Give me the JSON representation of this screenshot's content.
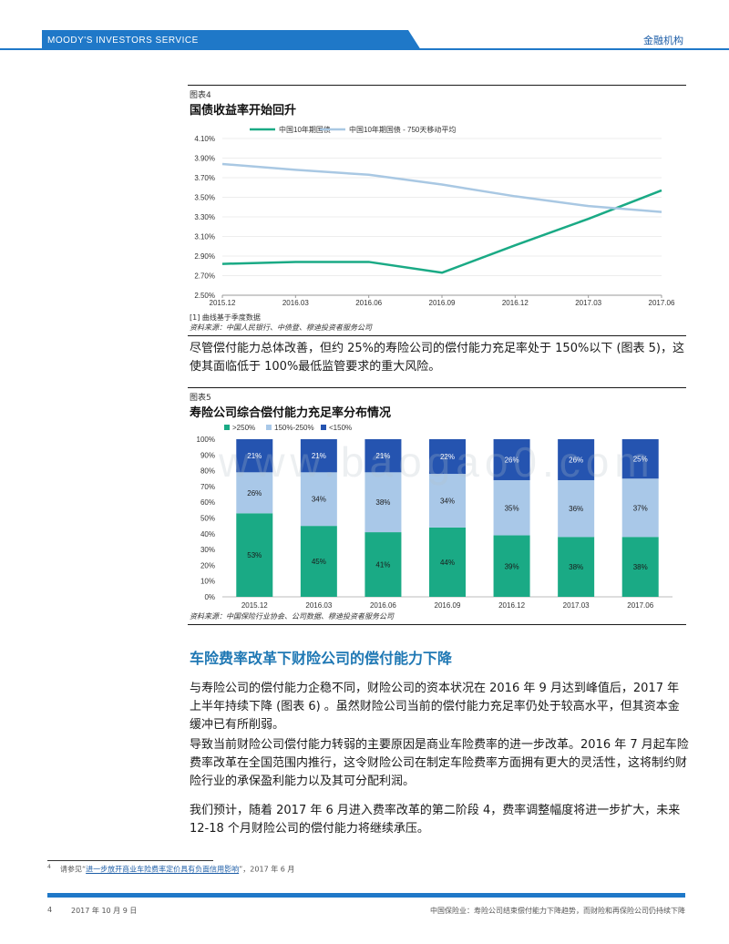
{
  "header": {
    "brand": "MOODY'S INVESTORS SERVICE",
    "section": "金融机构",
    "brand_color": "#1f78c8"
  },
  "figure4": {
    "label": "图表4",
    "title": "国债收益率开始回升",
    "note": "[1]    曲线基于季度数据",
    "source": "资料来源：中国人民银行、中债登、穆迪投资者服务公司"
  },
  "paragraph1": "尽管偿付能力总体改善，但约 25%的寿险公司的偿付能力充足率处于 150%以下 (图表 5)，这使其面临低于 100%最低监管要求的重大风险。",
  "figure5": {
    "label": "图表5",
    "title": "寿险公司综合偿付能力充足率分布情况",
    "source": "资料来源：中国保险行业协会、公司数据、穆迪投资者服务公司"
  },
  "section_heading": "车险费率改革下财险公司的偿付能力下降",
  "paragraph2": "与寿险公司的偿付能力企稳不同，财险公司的资本状况在 2016 年 9 月达到峰值后，2017 年上半年持续下降 (图表 6) 。虽然财险公司当前的偿付能力充足率仍处于较高水平，但其资本金缓冲已有所削弱。",
  "paragraph3": "导致当前财险公司偿付能力转弱的主要原因是商业车险费率的进一步改革。2016 年 7 月起车险费率改革在全国范围内推行，这令财险公司在制定车险费率方面拥有更大的灵活性，这将制约财险行业的承保盈利能力以及其可分配利润。",
  "paragraph4": "我们预计，随着 2017 年 6 月进入费率改革的第二阶段 4，费率调整幅度将进一步扩大，未来 12-18 个月财险公司的偿付能力将继续承压。",
  "footnote": {
    "number": "4",
    "prefix": "请参见“",
    "link": "进一步放开商业车险费率定价具有负面信用影响",
    "suffix": "”，2017 年 6 月"
  },
  "footer": {
    "page": "4",
    "date": "2017 年 10 月 9 日",
    "title": "中国保险业：寿险公司结束偿付能力下降趋势，而财险和再保险公司仍持续下降"
  },
  "watermark": "www.baogao0.com",
  "chart_data": [
    {
      "type": "line",
      "x": [
        "2015.12",
        "2016.03",
        "2016.06",
        "2016.09",
        "2016.12",
        "2017.03",
        "2017.06"
      ],
      "series": [
        {
          "name": "中国10年期国债",
          "color": "#1aaa85",
          "values": [
            2.82,
            2.84,
            2.84,
            2.73,
            3.01,
            3.28,
            3.57
          ]
        },
        {
          "name": "中国10年期国债 - 750天移动平均",
          "color": "#a9c8e3",
          "values": [
            3.84,
            3.78,
            3.73,
            3.63,
            3.51,
            3.41,
            3.35
          ]
        }
      ],
      "yticks": [
        "4.10%",
        "3.90%",
        "3.70%",
        "3.50%",
        "3.30%",
        "3.10%",
        "2.90%",
        "2.70%",
        "2.50%"
      ],
      "ylim": [
        2.5,
        4.1
      ],
      "legend": "top"
    },
    {
      "type": "bar",
      "stacked": true,
      "categories": [
        "2015.12",
        "2016.03",
        "2016.06",
        "2016.09",
        "2016.12",
        "2017.03",
        "2017.06"
      ],
      "series": [
        {
          "name": ">250%",
          "color": "#1aaa85",
          "values": [
            53,
            45,
            41,
            44,
            39,
            38,
            38
          ],
          "labels": [
            "53%",
            "45%",
            "41%",
            "44%",
            "39%",
            "38%",
            "38%"
          ]
        },
        {
          "name": "150%-250%",
          "color": "#a9c8e8",
          "values": [
            26,
            34,
            38,
            34,
            35,
            36,
            37
          ],
          "labels": [
            "26%",
            "34%",
            "38%",
            "34%",
            "35%",
            "36%",
            "37%"
          ]
        },
        {
          "name": "<150%",
          "color": "#2554b0",
          "values": [
            21,
            21,
            21,
            22,
            26,
            26,
            25
          ],
          "labels": [
            "21%",
            "21%",
            "21%",
            "22%",
            "26%",
            "26%",
            "25%"
          ]
        }
      ],
      "yticks": [
        "100%",
        "90%",
        "80%",
        "70%",
        "60%",
        "50%",
        "40%",
        "30%",
        "20%",
        "10%",
        "0%"
      ],
      "ylim": [
        0,
        100
      ],
      "legend": "top"
    }
  ]
}
